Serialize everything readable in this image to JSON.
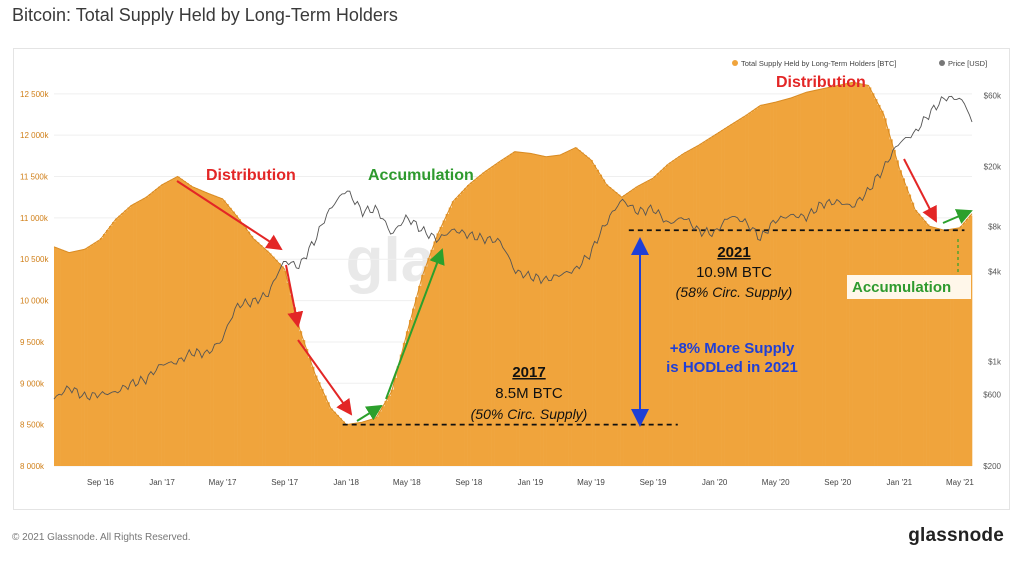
{
  "page": {
    "title": "Bitcoin: Total Supply Held by Long-Term Holders",
    "copyright": "© 2021 Glassnode. All Rights Reserved.",
    "brand": "glassnode",
    "watermark": "glassnode"
  },
  "colors": {
    "supply": "#f0a43c",
    "supply_edge": "#d98b22",
    "price": "#555555",
    "arrow_red": "#e32626",
    "arrow_green": "#2ca02c",
    "arrow_blue": "#1f3fd6",
    "annot_red": "#e32626",
    "annot_green": "#2e9a2e",
    "annot_blue": "#1f3fd6"
  },
  "chart_data": {
    "type": "area",
    "title": "Bitcoin: Total Supply Held by Long-Term Holders",
    "legend": {
      "placement": "top-right",
      "entries": [
        "Total Supply Held by Long-Term Holders [BTC]",
        "Price [USD]"
      ]
    },
    "x_ticks": [
      "Sep '16",
      "Jan '17",
      "May '17",
      "Sep '17",
      "Jan '18",
      "May '18",
      "Sep '18",
      "Jan '19",
      "May '19",
      "Sep '19",
      "Jan '20",
      "May '20",
      "Sep '20",
      "Jan '21",
      "May '21"
    ],
    "x_range": [
      "2016-06-01",
      "2021-05-25"
    ],
    "y_left": {
      "range": [
        8000000,
        12800000
      ],
      "ticks": [
        8000000,
        8500000,
        9000000,
        9500000,
        10000000,
        10500000,
        11000000,
        11500000,
        12000000,
        12500000
      ],
      "tick_labels": [
        "8 000k",
        "8 500k",
        "9 000k",
        "9 500k",
        "10 000k",
        "10 500k",
        "11 000k",
        "11 500k",
        "12 000k",
        "12 500k"
      ]
    },
    "y_right": {
      "scale": "log",
      "range": [
        200,
        90000
      ],
      "ticks": [
        200,
        600,
        1000,
        4000,
        8000,
        20000,
        60000
      ],
      "tick_labels": [
        "$200",
        "$600",
        "$1k",
        "$4k",
        "$8k",
        "$20k",
        "$60k"
      ]
    },
    "series": [
      {
        "name": "Total Supply Held by Long-Term Holders [BTC]",
        "axis": "left",
        "points": [
          [
            "2016-06-01",
            10650000
          ],
          [
            "2016-07-01",
            10580000
          ],
          [
            "2016-08-01",
            10620000
          ],
          [
            "2016-09-01",
            10740000
          ],
          [
            "2016-10-01",
            10980000
          ],
          [
            "2016-11-01",
            11150000
          ],
          [
            "2016-12-01",
            11250000
          ],
          [
            "2017-01-01",
            11400000
          ],
          [
            "2017-02-01",
            11500000
          ],
          [
            "2017-03-01",
            11380000
          ],
          [
            "2017-04-01",
            11300000
          ],
          [
            "2017-05-01",
            11230000
          ],
          [
            "2017-06-01",
            11000000
          ],
          [
            "2017-07-01",
            10750000
          ],
          [
            "2017-08-01",
            10580000
          ],
          [
            "2017-09-01",
            10380000
          ],
          [
            "2017-10-01",
            9650000
          ],
          [
            "2017-11-01",
            9100000
          ],
          [
            "2017-12-01",
            8700000
          ],
          [
            "2018-01-01",
            8500000
          ],
          [
            "2018-02-01",
            8530000
          ],
          [
            "2018-03-01",
            8580000
          ],
          [
            "2018-04-01",
            8900000
          ],
          [
            "2018-05-01",
            9600000
          ],
          [
            "2018-06-01",
            10300000
          ],
          [
            "2018-07-01",
            10800000
          ],
          [
            "2018-08-01",
            11200000
          ],
          [
            "2018-09-01",
            11400000
          ],
          [
            "2018-10-01",
            11550000
          ],
          [
            "2018-11-01",
            11680000
          ],
          [
            "2018-12-01",
            11800000
          ],
          [
            "2019-01-01",
            11780000
          ],
          [
            "2019-02-01",
            11740000
          ],
          [
            "2019-03-01",
            11760000
          ],
          [
            "2019-04-01",
            11850000
          ],
          [
            "2019-05-01",
            11700000
          ],
          [
            "2019-06-01",
            11400000
          ],
          [
            "2019-07-01",
            11250000
          ],
          [
            "2019-08-01",
            11380000
          ],
          [
            "2019-09-01",
            11480000
          ],
          [
            "2019-10-01",
            11650000
          ],
          [
            "2019-11-01",
            11780000
          ],
          [
            "2019-12-01",
            11880000
          ],
          [
            "2020-01-01",
            12000000
          ],
          [
            "2020-02-01",
            12120000
          ],
          [
            "2020-03-01",
            12230000
          ],
          [
            "2020-04-01",
            12360000
          ],
          [
            "2020-05-01",
            12400000
          ],
          [
            "2020-06-01",
            12450000
          ],
          [
            "2020-07-01",
            12520000
          ],
          [
            "2020-08-01",
            12560000
          ],
          [
            "2020-09-01",
            12600000
          ],
          [
            "2020-10-01",
            12640000
          ],
          [
            "2020-11-01",
            12600000
          ],
          [
            "2020-12-01",
            12250000
          ],
          [
            "2021-01-01",
            11600000
          ],
          [
            "2021-02-01",
            11100000
          ],
          [
            "2021-03-01",
            10900000
          ],
          [
            "2021-04-01",
            10850000
          ],
          [
            "2021-05-01",
            10880000
          ],
          [
            "2021-05-25",
            11050000
          ]
        ]
      },
      {
        "name": "Price [USD]",
        "axis": "right",
        "points": [
          [
            "2016-06-01",
            560
          ],
          [
            "2016-07-01",
            670
          ],
          [
            "2016-08-01",
            580
          ],
          [
            "2016-09-01",
            605
          ],
          [
            "2016-10-01",
            620
          ],
          [
            "2016-11-01",
            710
          ],
          [
            "2016-12-01",
            760
          ],
          [
            "2017-01-01",
            960
          ],
          [
            "2017-02-01",
            990
          ],
          [
            "2017-03-01",
            1150
          ],
          [
            "2017-04-01",
            1130
          ],
          [
            "2017-05-01",
            1400
          ],
          [
            "2017-06-01",
            2400
          ],
          [
            "2017-07-01",
            2500
          ],
          [
            "2017-08-01",
            2850
          ],
          [
            "2017-09-01",
            4700
          ],
          [
            "2017-10-01",
            4300
          ],
          [
            "2017-11-01",
            6500
          ],
          [
            "2017-12-01",
            10500
          ],
          [
            "2018-01-01",
            14000
          ],
          [
            "2018-02-01",
            10000
          ],
          [
            "2018-03-01",
            10500
          ],
          [
            "2018-04-01",
            7000
          ],
          [
            "2018-05-01",
            9200
          ],
          [
            "2018-06-01",
            7500
          ],
          [
            "2018-07-01",
            6500
          ],
          [
            "2018-08-01",
            7600
          ],
          [
            "2018-09-01",
            7000
          ],
          [
            "2018-10-01",
            6600
          ],
          [
            "2018-11-01",
            6400
          ],
          [
            "2018-12-01",
            4000
          ],
          [
            "2019-01-01",
            3700
          ],
          [
            "2019-02-01",
            3500
          ],
          [
            "2019-03-01",
            3800
          ],
          [
            "2019-04-01",
            4100
          ],
          [
            "2019-05-01",
            5300
          ],
          [
            "2019-06-01",
            8500
          ],
          [
            "2019-07-01",
            12000
          ],
          [
            "2019-08-01",
            10000
          ],
          [
            "2019-09-01",
            10500
          ],
          [
            "2019-10-01",
            8300
          ],
          [
            "2019-11-01",
            9200
          ],
          [
            "2019-12-01",
            7400
          ],
          [
            "2020-01-01",
            7200
          ],
          [
            "2020-02-01",
            9400
          ],
          [
            "2020-03-01",
            8600
          ],
          [
            "2020-04-01",
            6600
          ],
          [
            "2020-05-01",
            8800
          ],
          [
            "2020-06-01",
            9500
          ],
          [
            "2020-07-01",
            9200
          ],
          [
            "2020-08-01",
            11300
          ],
          [
            "2020-09-01",
            11700
          ],
          [
            "2020-10-01",
            10800
          ],
          [
            "2020-11-01",
            13800
          ],
          [
            "2020-12-01",
            19400
          ],
          [
            "2021-01-01",
            29000
          ],
          [
            "2021-02-01",
            33500
          ],
          [
            "2021-03-01",
            45000
          ],
          [
            "2021-04-01",
            58000
          ],
          [
            "2021-05-01",
            57000
          ],
          [
            "2021-05-15",
            50000
          ],
          [
            "2021-05-25",
            38000
          ]
        ]
      }
    ],
    "annotations": {
      "distribution_2017": "Distribution",
      "accumulation_2018": "Accumulation",
      "distribution_2021": "Distribution",
      "accumulation_2021": "Accumulation",
      "label_2021_year": "2021",
      "label_2021_amount": "10.9M BTC",
      "label_2021_share": "(58% Circ. Supply)",
      "label_2017_year": "2017",
      "label_2017_amount": "8.5M BTC",
      "label_2017_share": "(50% Circ. Supply)",
      "more_supply_line1": "+8% More Supply",
      "more_supply_line2": "is HODLed in 2021",
      "level_2017": 8500000,
      "level_2021": 10850000
    }
  }
}
